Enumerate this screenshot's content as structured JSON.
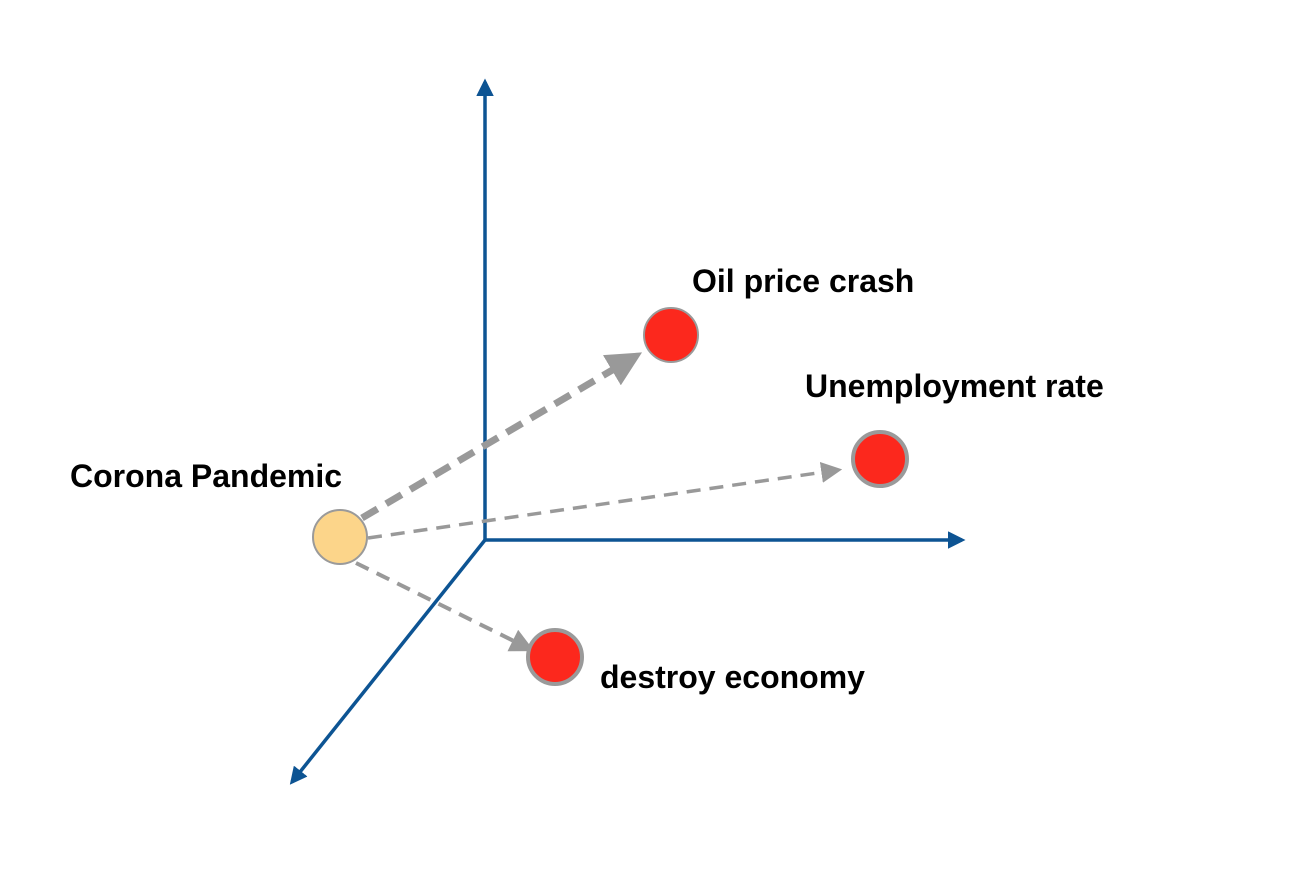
{
  "colors": {
    "axis": "#0d5493",
    "edge": "#999999",
    "source_node_fill": "#fcd58a",
    "source_node_stroke": "#9a9a9a",
    "target_node_fill": "#fc281d",
    "target_node_stroke": "#9a9a9a",
    "label_text": "#000000"
  },
  "nodes": {
    "source": {
      "label": "Corona Pandemic",
      "role": "cause"
    },
    "targets": [
      {
        "label": "Oil price crash",
        "role": "effect"
      },
      {
        "label": "Unemployment rate",
        "role": "effect"
      },
      {
        "label": "destroy economy",
        "role": "effect"
      }
    ]
  },
  "edges": [
    {
      "from": "Corona Pandemic",
      "to": "Oil price crash",
      "style": "dashed-thick"
    },
    {
      "from": "Corona Pandemic",
      "to": "Unemployment rate",
      "style": "dashed"
    },
    {
      "from": "Corona Pandemic",
      "to": "destroy economy",
      "style": "dashed"
    }
  ],
  "axes": {
    "count": 3,
    "directions": [
      "up",
      "right",
      "down-left"
    ]
  }
}
